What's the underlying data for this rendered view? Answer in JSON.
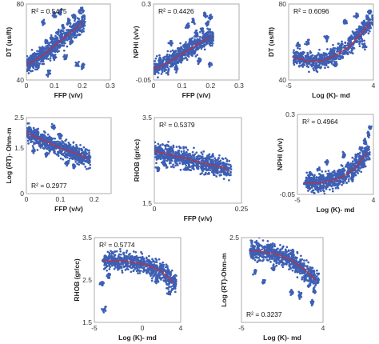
{
  "colors": {
    "points": "#3d5fb4",
    "fit": "#d62728",
    "axis": "#9a9a9a"
  },
  "chart_data": [
    {
      "type": "scatter",
      "xlabel": "FFP (v/v)",
      "ylabel": "DT (us/ft)",
      "xlim": [
        0,
        0.3
      ],
      "ylim": [
        40,
        80
      ],
      "xticks": [
        "0",
        "0.1",
        "0.2",
        "0.3"
      ],
      "yticks": [
        "40",
        "80"
      ],
      "r2_label": "R² = 0.5475",
      "r2_pos": "top-left",
      "series": [
        {
          "values": [
            [
              0.0,
              49
            ],
            [
              0.015,
              51
            ],
            [
              0.03,
              53
            ],
            [
              0.05,
              56
            ],
            [
              0.07,
              60
            ],
            [
              0.09,
              62
            ],
            [
              0.11,
              65
            ],
            [
              0.13,
              68
            ],
            [
              0.15,
              71
            ],
            [
              0.17,
              73
            ],
            [
              0.19,
              76
            ],
            [
              0.2,
              77
            ],
            [
              0.06,
              70
            ],
            [
              0.1,
              74
            ],
            [
              0.12,
              76
            ],
            [
              0.08,
              44
            ],
            [
              0.16,
              60
            ],
            [
              0.14,
              52
            ],
            [
              0.18,
              48
            ],
            [
              0.2,
              47
            ],
            [
              0.04,
              47
            ],
            [
              0.1,
              52
            ]
          ]
        }
      ],
      "fit": [
        [
          0,
          48
        ],
        [
          0.05,
          52
        ],
        [
          0.1,
          58
        ],
        [
          0.15,
          64
        ],
        [
          0.2,
          70
        ]
      ],
      "fit_type": "polynomial"
    },
    {
      "type": "scatter",
      "xlabel": "FFP (v/v)",
      "ylabel": "NPHI (v/v)",
      "xlim": [
        0,
        0.3
      ],
      "ylim": [
        -0.05,
        0.3
      ],
      "xticks": [
        "0",
        "0.1",
        "0.2",
        "0.3"
      ],
      "yticks": [
        "-0.05",
        "0.3"
      ],
      "r2_label": "R² = 0.4426",
      "r2_pos": "top-left",
      "series": [
        {
          "values": [
            [
              0.0,
              0.0
            ],
            [
              0.015,
              0.01
            ],
            [
              0.03,
              0.02
            ],
            [
              0.05,
              0.04
            ],
            [
              0.07,
              0.06
            ],
            [
              0.09,
              0.08
            ],
            [
              0.11,
              0.11
            ],
            [
              0.13,
              0.13
            ],
            [
              0.15,
              0.16
            ],
            [
              0.17,
              0.18
            ],
            [
              0.19,
              0.21
            ],
            [
              0.2,
              0.24
            ],
            [
              0.12,
              0.2
            ],
            [
              0.18,
              0.25
            ],
            [
              0.16,
              0.04
            ],
            [
              0.08,
              0.0
            ],
            [
              0.2,
              0.02
            ],
            [
              0.14,
              0.22
            ],
            [
              0.06,
              0.12
            ]
          ]
        }
      ],
      "fit": [
        [
          0,
          0.0
        ],
        [
          0.05,
          0.03
        ],
        [
          0.1,
          0.07
        ],
        [
          0.15,
          0.11
        ],
        [
          0.2,
          0.15
        ]
      ],
      "fit_type": "polynomial"
    },
    {
      "type": "scatter",
      "xlabel": "Log (K)- md",
      "ylabel": "DT (us/ft)",
      "xlim": [
        -5,
        4
      ],
      "ylim": [
        40,
        80
      ],
      "xticks": [
        "-5",
        "4"
      ],
      "yticks": [
        "40",
        "80"
      ],
      "r2_label": "R² = 0.6096",
      "r2_pos": "top-left",
      "series": [
        {
          "values": [
            [
              -4.2,
              52
            ],
            [
              -3.5,
              51
            ],
            [
              -2.5,
              51
            ],
            [
              -1.5,
              52
            ],
            [
              -0.5,
              54
            ],
            [
              0.5,
              57
            ],
            [
              1.5,
              61
            ],
            [
              2.0,
              64
            ],
            [
              2.5,
              67
            ],
            [
              3.0,
              70
            ],
            [
              3.4,
              73
            ],
            [
              3.6,
              76
            ],
            [
              -3.0,
              60
            ],
            [
              -1.0,
              62
            ],
            [
              1.0,
              70
            ],
            [
              2.2,
              74
            ],
            [
              0.0,
              48
            ],
            [
              -2.0,
              47
            ],
            [
              3.0,
              58
            ],
            [
              -4.0,
              58
            ]
          ]
        }
      ],
      "fit": [
        [
          -4.5,
          52
        ],
        [
          -3,
          50
        ],
        [
          -1.5,
          50
        ],
        [
          0,
          53
        ],
        [
          1.5,
          58
        ],
        [
          3,
          66
        ],
        [
          3.6,
          70
        ]
      ],
      "fit_type": "polynomial"
    },
    {
      "type": "scatter",
      "xlabel": "FFP (v/v)",
      "ylabel": "Log (RT)- Ohm-m",
      "xlim": [
        0,
        0.25
      ],
      "ylim": [
        0,
        2.5
      ],
      "xticks": [
        "0",
        "0.1",
        "0.2"
      ],
      "yticks": [
        "0",
        "1.5",
        "2.5"
      ],
      "r2_label": "R² = 0.2977",
      "r2_pos": "bottom-left",
      "series": [
        {
          "values": [
            [
              0.0,
              2.0
            ],
            [
              0.01,
              2.1
            ],
            [
              0.02,
              1.9
            ],
            [
              0.03,
              2.0
            ],
            [
              0.05,
              1.9
            ],
            [
              0.07,
              1.8
            ],
            [
              0.09,
              1.6
            ],
            [
              0.11,
              1.5
            ],
            [
              0.13,
              1.4
            ],
            [
              0.15,
              1.2
            ],
            [
              0.17,
              1.1
            ],
            [
              0.02,
              1.4
            ],
            [
              0.06,
              1.3
            ],
            [
              0.08,
              2.2
            ],
            [
              0.12,
              1.0
            ],
            [
              0.04,
              1.6
            ],
            [
              0.1,
              1.9
            ],
            [
              0.14,
              0.9
            ]
          ]
        }
      ],
      "fit": [
        [
          0,
          2.0
        ],
        [
          0.05,
          1.75
        ],
        [
          0.1,
          1.5
        ],
        [
          0.15,
          1.3
        ],
        [
          0.18,
          1.15
        ]
      ],
      "fit_type": "linear"
    },
    {
      "type": "scatter",
      "xlabel": "FFP (v/v)",
      "ylabel": "RHOB (gr/cc)",
      "xlim": [
        0,
        0.25
      ],
      "ylim": [
        1.5,
        3.5
      ],
      "xticks": [
        "0",
        "0.25"
      ],
      "yticks": [
        "1.5",
        "3.5"
      ],
      "r2_label": "R² = 0.5379",
      "r2_pos": "top-left",
      "series": [
        {
          "values": [
            [
              0.0,
              2.7
            ],
            [
              0.01,
              2.72
            ],
            [
              0.02,
              2.68
            ],
            [
              0.04,
              2.62
            ],
            [
              0.06,
              2.58
            ],
            [
              0.08,
              2.55
            ],
            [
              0.1,
              2.5
            ],
            [
              0.12,
              2.45
            ],
            [
              0.14,
              2.4
            ],
            [
              0.16,
              2.35
            ],
            [
              0.18,
              2.3
            ],
            [
              0.2,
              2.28
            ],
            [
              0.03,
              2.4
            ],
            [
              0.05,
              2.75
            ],
            [
              0.09,
              2.3
            ],
            [
              0.15,
              2.55
            ],
            [
              0.01,
              2.3
            ]
          ]
        }
      ],
      "fit": [
        [
          0,
          2.72
        ],
        [
          0.05,
          2.62
        ],
        [
          0.1,
          2.52
        ],
        [
          0.15,
          2.42
        ],
        [
          0.21,
          2.3
        ]
      ],
      "fit_type": "linear"
    },
    {
      "type": "scatter",
      "xlabel": "Log (K)- md",
      "ylabel": "NPHI (v/v)",
      "xlim": [
        -5,
        4
      ],
      "ylim": [
        -0.05,
        0.3
      ],
      "xticks": [
        "-5",
        "4"
      ],
      "yticks": [
        "-0.05",
        "0.3"
      ],
      "r2_label": "R² = 0.4964",
      "r2_pos": "top-left",
      "series": [
        {
          "values": [
            [
              -4.0,
              0.0
            ],
            [
              -3.0,
              0.01
            ],
            [
              -2.0,
              0.02
            ],
            [
              -1.0,
              0.03
            ],
            [
              0.0,
              0.05
            ],
            [
              1.0,
              0.08
            ],
            [
              2.0,
              0.12
            ],
            [
              2.5,
              0.15
            ],
            [
              3.0,
              0.18
            ],
            [
              3.4,
              0.21
            ],
            [
              3.6,
              0.24
            ],
            [
              -2.5,
              0.06
            ],
            [
              -1.5,
              0.09
            ],
            [
              0.5,
              0.12
            ],
            [
              1.5,
              0.02
            ],
            [
              -3.5,
              0.04
            ],
            [
              2.8,
              0.08
            ]
          ]
        }
      ],
      "fit": [
        [
          -4,
          0.0
        ],
        [
          -2.5,
          0.0
        ],
        [
          -1,
          0.01
        ],
        [
          0.5,
          0.03
        ],
        [
          2,
          0.07
        ],
        [
          3.2,
          0.13
        ]
      ],
      "fit_type": "polynomial"
    },
    {
      "type": "scatter",
      "xlabel": "Log (K)- md",
      "ylabel": "RHOB (gr/cc)",
      "xlim": [
        -5,
        4
      ],
      "ylim": [
        1.5,
        3.5
      ],
      "xticks": [
        "-5",
        "0",
        "4"
      ],
      "yticks": [
        "1.5",
        "2.5",
        "3.5"
      ],
      "r2_label": "R² = 0.5774",
      "r2_pos": "top-left",
      "series": [
        {
          "values": [
            [
              -4.0,
              2.95
            ],
            [
              -3.0,
              2.98
            ],
            [
              -2.0,
              2.97
            ],
            [
              -1.0,
              2.95
            ],
            [
              0.0,
              2.9
            ],
            [
              1.0,
              2.85
            ],
            [
              2.0,
              2.72
            ],
            [
              2.5,
              2.62
            ],
            [
              3.0,
              2.5
            ],
            [
              3.4,
              2.35
            ],
            [
              -4.2,
              2.4
            ],
            [
              -3.5,
              2.6
            ],
            [
              -2.5,
              2.8
            ],
            [
              1.5,
              2.5
            ],
            [
              2.8,
              2.2
            ],
            [
              -4.0,
              1.8
            ]
          ]
        }
      ],
      "fit": [
        [
          -4,
          2.95
        ],
        [
          -2.5,
          2.95
        ],
        [
          -1,
          2.92
        ],
        [
          0.5,
          2.85
        ],
        [
          2,
          2.7
        ],
        [
          3.2,
          2.45
        ]
      ],
      "fit_type": "polynomial"
    },
    {
      "type": "scatter",
      "xlabel": "Log (K)- md",
      "ylabel": "Log (RT)-Ohm-m",
      "xlim": [
        -5,
        4
      ],
      "ylim": [
        0,
        2.5
      ],
      "xticks": [
        "-5",
        "4"
      ],
      "yticks": [
        "2.5"
      ],
      "r2_label": "R² = 0.3237",
      "r2_pos": "bottom-left",
      "series": [
        {
          "values": [
            [
              -4.0,
              2.1
            ],
            [
              -3.0,
              2.05
            ],
            [
              -2.0,
              2.0
            ],
            [
              -1.0,
              1.95
            ],
            [
              0.0,
              1.8
            ],
            [
              1.0,
              1.6
            ],
            [
              2.0,
              1.3
            ],
            [
              2.5,
              1.1
            ],
            [
              3.0,
              0.9
            ],
            [
              -3.5,
              1.5
            ],
            [
              -2.5,
              1.2
            ],
            [
              -1.5,
              1.6
            ],
            [
              0.5,
              0.9
            ],
            [
              1.5,
              0.8
            ],
            [
              2.8,
              0.6
            ],
            [
              -2.0,
              2.2
            ]
          ]
        }
      ],
      "fit": [
        [
          -4,
          2.1
        ],
        [
          -2.5,
          2.08
        ],
        [
          -1,
          2.0
        ],
        [
          0.5,
          1.85
        ],
        [
          2,
          1.55
        ],
        [
          3.2,
          1.25
        ]
      ],
      "fit_type": "polynomial"
    }
  ]
}
